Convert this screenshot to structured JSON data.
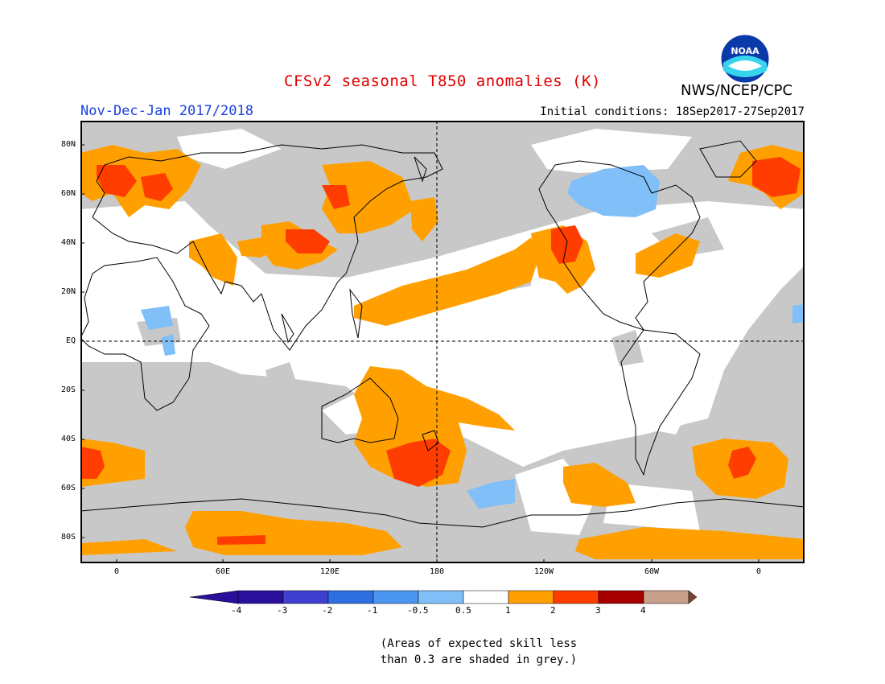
{
  "header": {
    "title": "CFSv2 seasonal T850 anomalies (K)",
    "period": "Nov-Dec-Jan 2017/2018",
    "initial_conditions": "Initial conditions: 18Sep2017-27Sep2017",
    "agency": "NWS/NCEP/CPC",
    "logo_text": "NOAA"
  },
  "map": {
    "lat_labels": [
      "80N",
      "60N",
      "40N",
      "20N",
      "EQ",
      "20S",
      "40S",
      "60S",
      "80S"
    ],
    "lon_labels": [
      "0",
      "60E",
      "120E",
      "180",
      "120W",
      "60W",
      "0"
    ]
  },
  "legend": {
    "labels": [
      "-4",
      "-3",
      "-2",
      "-1",
      "-0.5",
      "0.5",
      "1",
      "2",
      "3",
      "4"
    ],
    "colors": [
      "#2a0f9a",
      "#3f3fd0",
      "#2d6fe0",
      "#4a96f0",
      "#80bff8",
      "#ffffff",
      "#ffa000",
      "#ff3d00",
      "#a60000",
      "#c8a08c",
      "#774433"
    ],
    "note_line1": "(Areas of expected skill less",
    "note_line2": "than 0.3 are shaded in grey.)"
  },
  "colors": {
    "grey_low_skill": "#c8c8c8",
    "warm_05_1": "#ffa000",
    "warm_1_2": "#ff3d00",
    "cool_05_1": "#80bff8",
    "title": "#e00000",
    "period": "#1b3fe0"
  }
}
